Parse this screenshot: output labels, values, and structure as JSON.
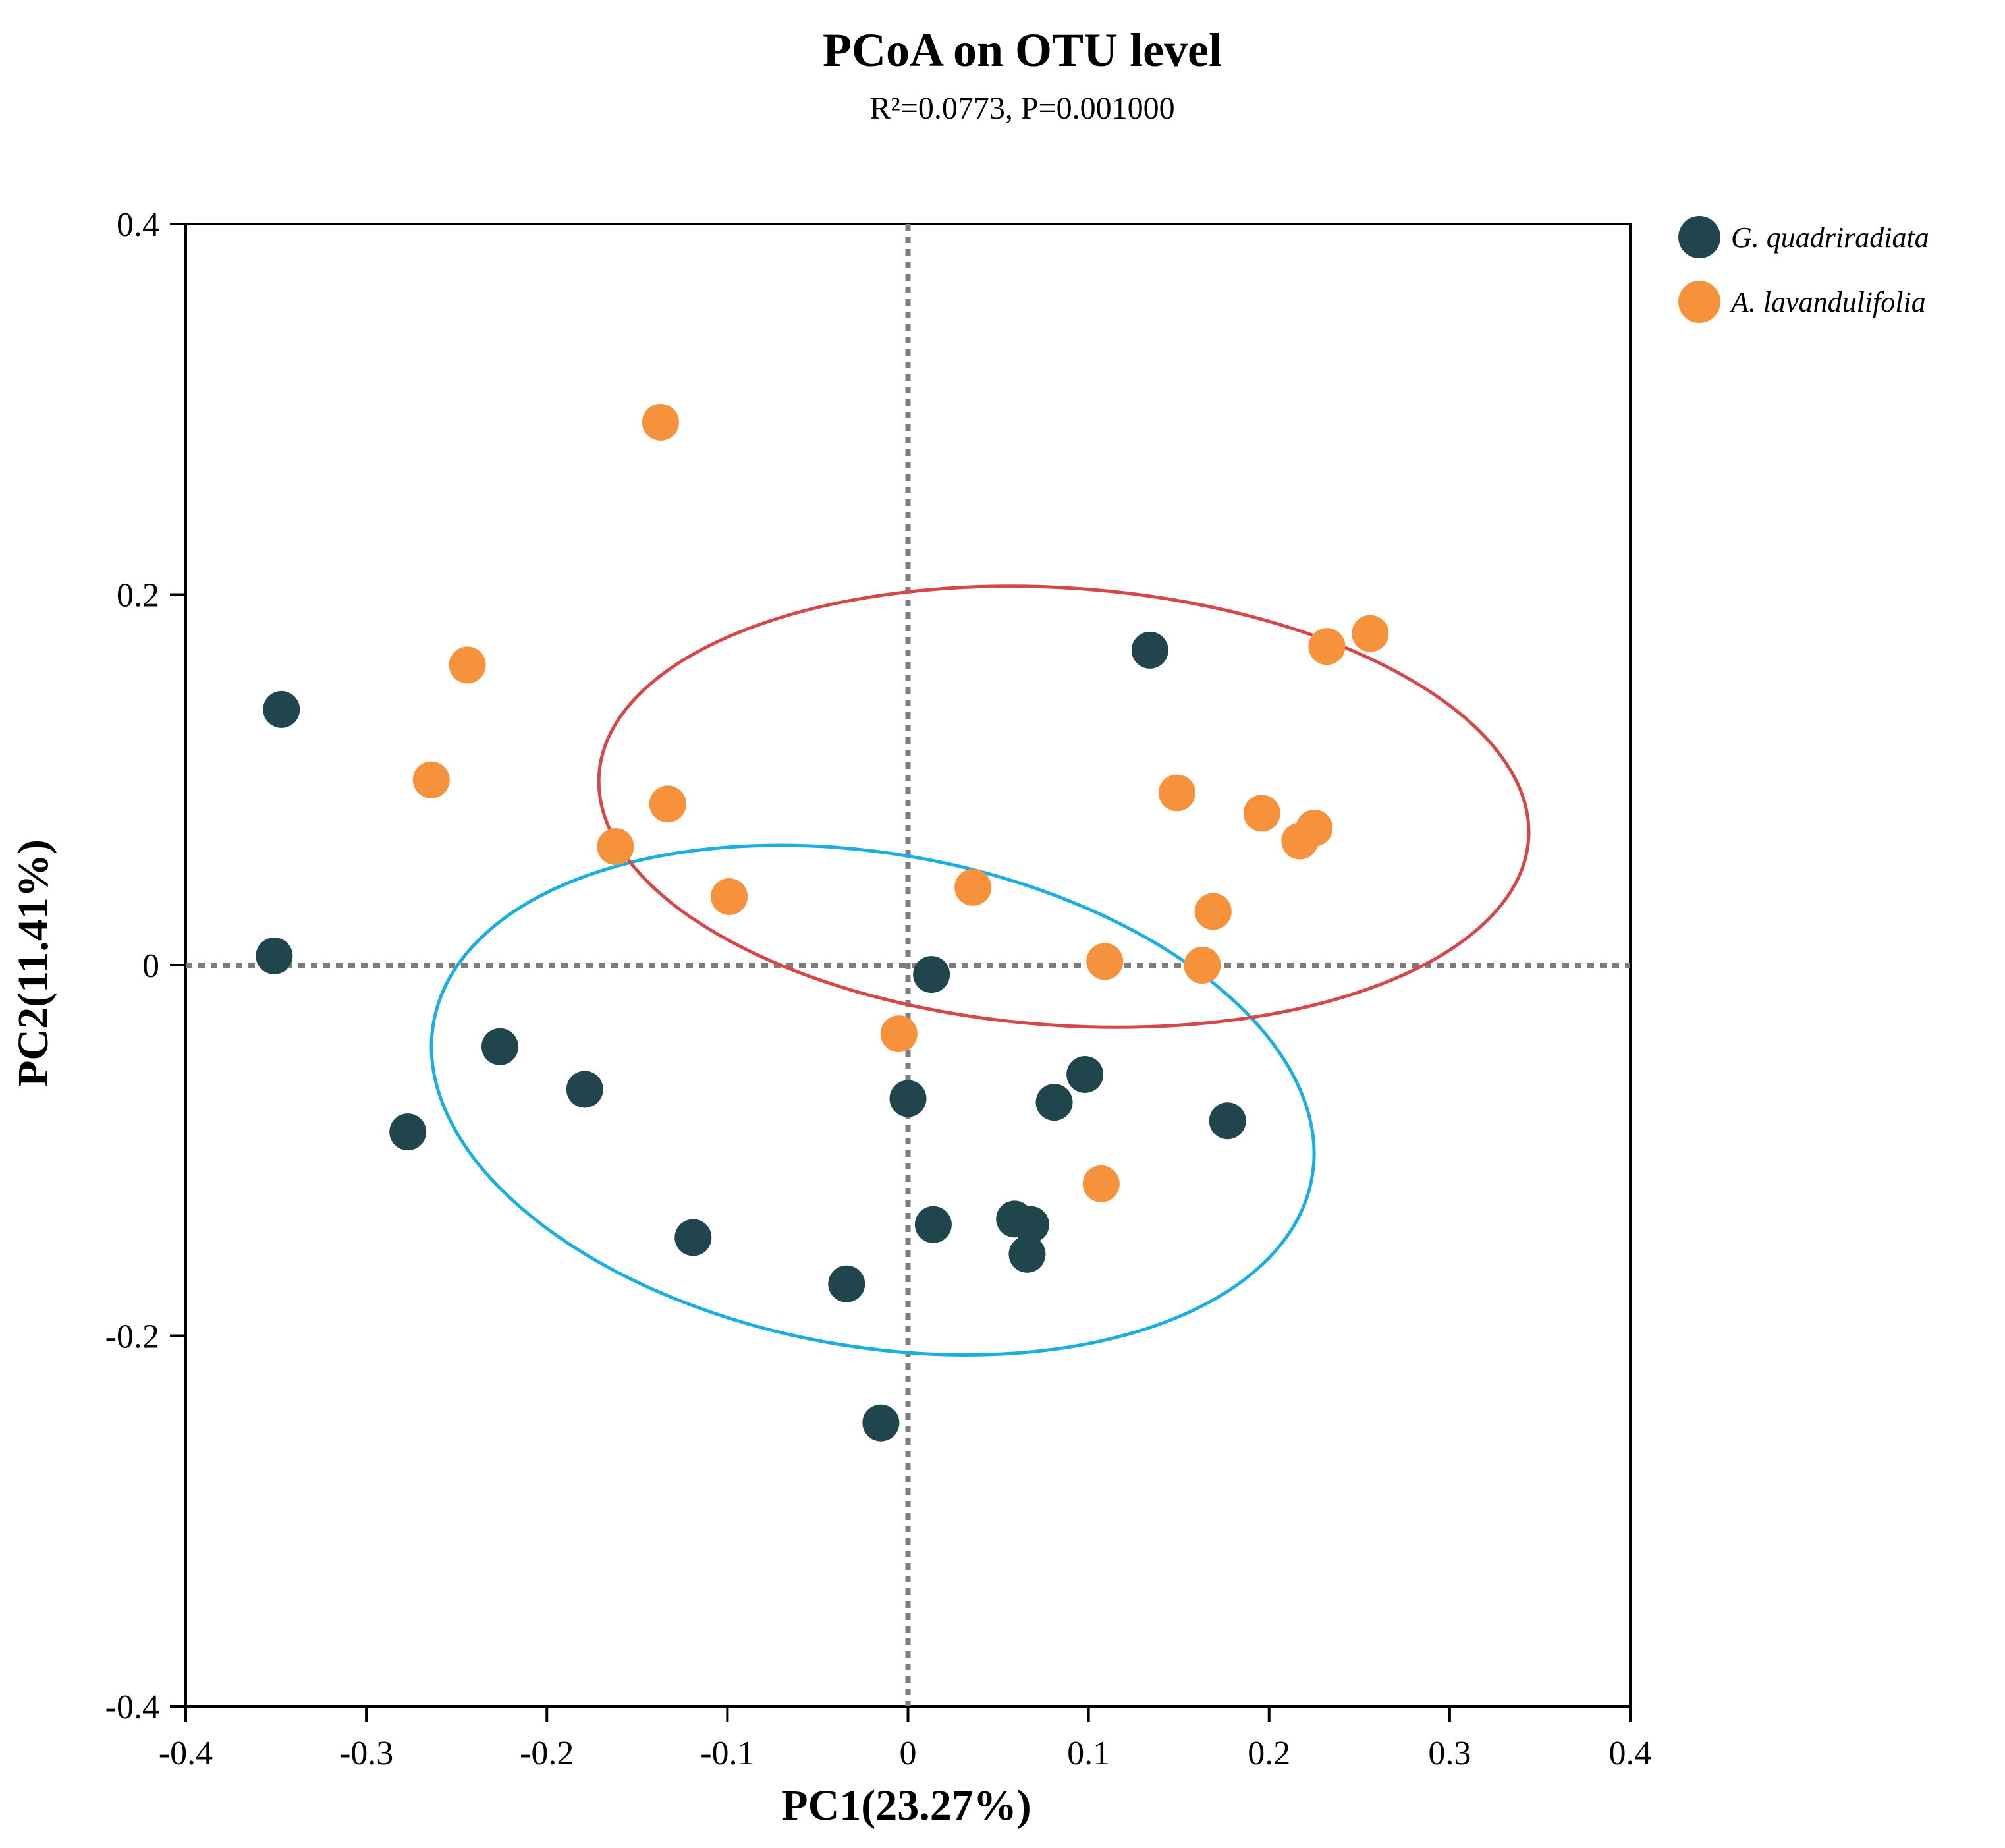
{
  "chart_data": {
    "type": "scatter",
    "title": "PCoA on OTU level",
    "subtitle": "R²=0.0773, P=0.001000",
    "xlabel": "PC1(23.27%)",
    "ylabel": "PC2(11.41%)",
    "xlim": [
      -0.4,
      0.4
    ],
    "ylim": [
      -0.4,
      0.4
    ],
    "xticks": [
      -0.4,
      -0.3,
      -0.2,
      -0.1,
      0,
      0.1,
      0.2,
      0.3,
      0.4
    ],
    "yticks": [
      -0.4,
      -0.2,
      0,
      0.2,
      0.4
    ],
    "xtick_labels": [
      "-0.4",
      "-0.3",
      "-0.2",
      "-0.1",
      "0",
      "0.1",
      "0.2",
      "0.3",
      "0.4"
    ],
    "ytick_labels": [
      "-0.4",
      "-0.2",
      "0",
      "0.2",
      "0.4"
    ],
    "reference_lines": {
      "x": 0,
      "y": 0,
      "style": "dotted"
    },
    "legend_position": "top-right outside",
    "series": [
      {
        "name": "G. quadriradiata",
        "color": "#20454c",
        "ellipse_color": "#1aafe0",
        "ellipse": {
          "center": [
            -0.0195,
            -0.0728
          ],
          "semi_axes": [
            0.247,
            0.133
          ],
          "angle_deg": -10
        },
        "points": [
          [
            -0.347,
            0.138
          ],
          [
            -0.351,
            0.005
          ],
          [
            -0.226,
            -0.044
          ],
          [
            -0.179,
            -0.067
          ],
          [
            -0.277,
            -0.09
          ],
          [
            -0.119,
            -0.147
          ],
          [
            -0.034,
            -0.172
          ],
          [
            -0.015,
            -0.247
          ],
          [
            0.013,
            -0.005
          ],
          [
            0.0,
            -0.072
          ],
          [
            0.014,
            -0.14
          ],
          [
            0.059,
            -0.137
          ],
          [
            0.068,
            -0.14
          ],
          [
            0.066,
            -0.156
          ],
          [
            0.081,
            -0.074
          ],
          [
            0.098,
            -0.059
          ],
          [
            0.177,
            -0.084
          ],
          [
            0.134,
            0.17
          ]
        ]
      },
      {
        "name": "A. lavandulifolia",
        "color": "#f7923c",
        "ellipse_color": "#d6474a",
        "ellipse": {
          "center": [
            0.0863,
            0.0855
          ],
          "semi_axes": [
            0.258,
            0.118
          ],
          "angle_deg": -4
        },
        "points": [
          [
            -0.137,
            0.293
          ],
          [
            -0.244,
            0.162
          ],
          [
            -0.264,
            0.1
          ],
          [
            -0.133,
            0.087
          ],
          [
            -0.162,
            0.064
          ],
          [
            -0.099,
            0.037
          ],
          [
            0.036,
            0.042
          ],
          [
            -0.005,
            -0.037
          ],
          [
            0.109,
            0.002
          ],
          [
            0.107,
            -0.118
          ],
          [
            0.149,
            0.093
          ],
          [
            0.169,
            0.029
          ],
          [
            0.163,
            0.0
          ],
          [
            0.196,
            0.082
          ],
          [
            0.217,
            0.067
          ],
          [
            0.225,
            0.074
          ],
          [
            0.232,
            0.172
          ],
          [
            0.256,
            0.179
          ]
        ]
      }
    ]
  }
}
